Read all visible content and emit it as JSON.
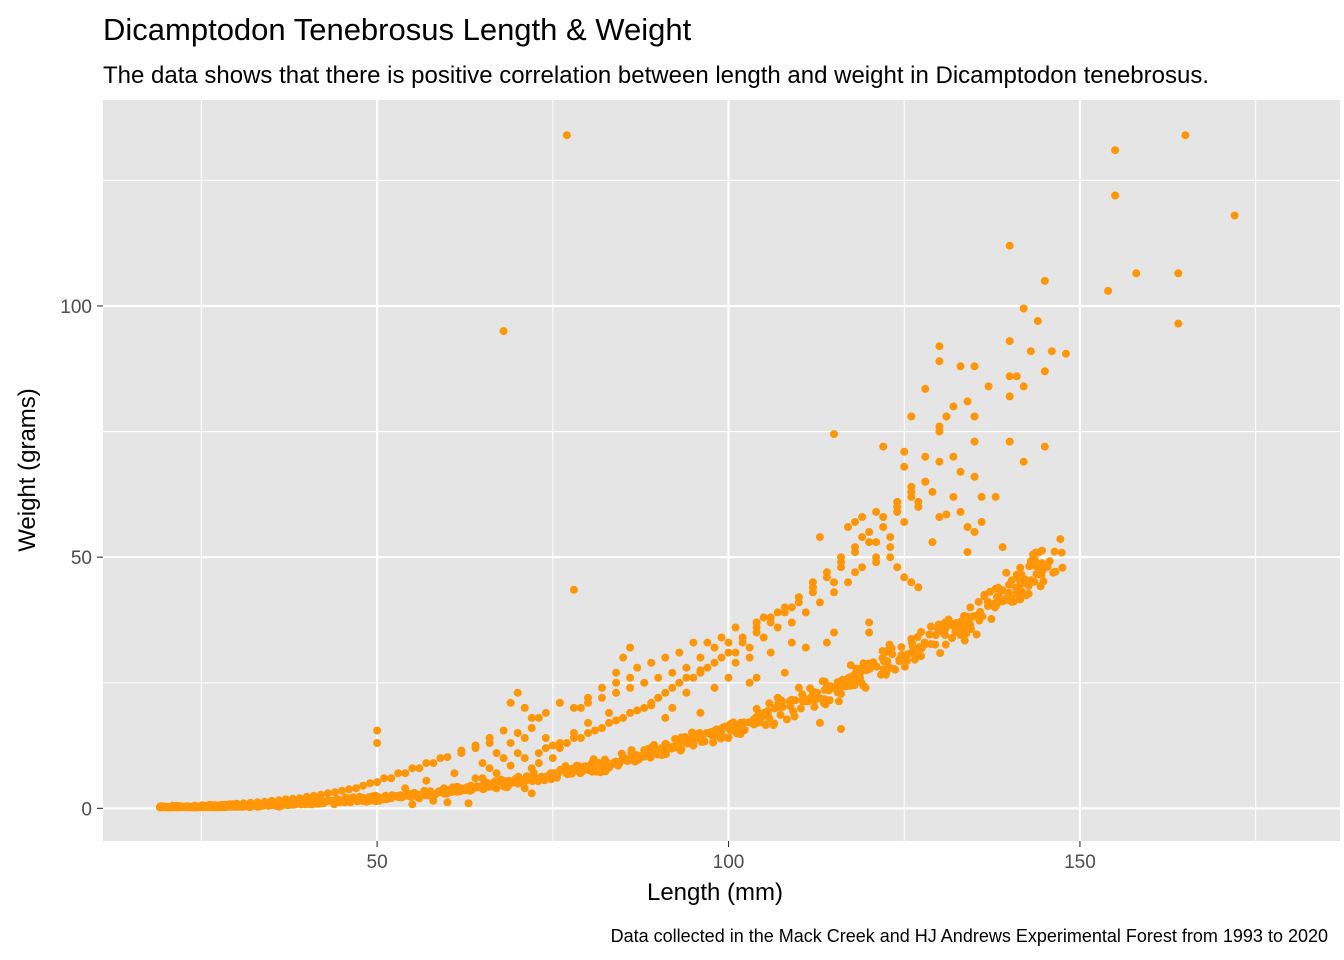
{
  "chart_data": {
    "type": "scatter",
    "title": "Dicamptodon Tenebrosus Length & Weight",
    "subtitle": "The data shows that there is positive correlation between length and weight in Dicamptodon tenebrosus.",
    "xlabel": "Length (mm)",
    "ylabel": "Weight (grams)",
    "caption": "Data collected in the Mack Creek and HJ Andrews Experimental Forest from 1993 to 2020",
    "xlim": [
      11,
      187
    ],
    "ylim": [
      -6.5,
      141
    ],
    "x_ticks": [
      50,
      100,
      150
    ],
    "x_tick_labels": [
      "50",
      "100",
      "150"
    ],
    "y_ticks": [
      0,
      50,
      100
    ],
    "y_tick_labels": [
      "0",
      "50",
      "100"
    ],
    "grid": true,
    "point_color": "#FF9607",
    "panel_color": "#E5E5E5",
    "grid_color": "#FFFFFF",
    "trend": {
      "a": 1.65e-05,
      "b": 2.99,
      "x_min": 19,
      "x_max": 148
    },
    "points": [
      [
        77,
        134
      ],
      [
        68,
        95
      ],
      [
        78,
        43.5
      ],
      [
        113,
        17
      ],
      [
        116,
        15.8
      ],
      [
        115,
        74.5
      ],
      [
        155,
        131
      ],
      [
        155,
        122
      ],
      [
        165,
        134
      ],
      [
        172,
        118
      ],
      [
        158,
        106.5
      ],
      [
        164,
        106.5
      ],
      [
        164,
        96.5
      ],
      [
        154,
        103
      ],
      [
        140,
        112
      ],
      [
        145,
        105
      ],
      [
        142,
        99.5
      ],
      [
        144,
        97
      ],
      [
        140,
        93
      ],
      [
        143,
        91
      ],
      [
        146,
        91
      ],
      [
        148,
        90.5
      ],
      [
        130,
        92
      ],
      [
        145,
        87
      ],
      [
        140,
        86
      ],
      [
        133,
        88
      ],
      [
        135,
        88
      ],
      [
        130,
        89
      ],
      [
        137,
        84
      ],
      [
        128,
        83.5
      ],
      [
        141,
        86
      ],
      [
        140,
        82
      ],
      [
        142,
        84
      ],
      [
        132,
        80
      ],
      [
        131,
        78
      ],
      [
        134,
        81
      ],
      [
        135,
        78
      ],
      [
        126,
        78
      ],
      [
        130,
        76
      ],
      [
        130,
        75
      ],
      [
        140,
        73
      ],
      [
        145,
        72
      ],
      [
        142,
        69
      ],
      [
        135,
        73
      ],
      [
        122,
        72
      ],
      [
        125,
        71
      ],
      [
        128,
        70
      ],
      [
        130,
        69
      ],
      [
        132,
        70
      ],
      [
        125,
        68
      ],
      [
        128,
        65
      ],
      [
        133,
        67
      ],
      [
        135,
        66
      ],
      [
        126,
        64
      ],
      [
        132,
        62
      ],
      [
        136,
        62
      ],
      [
        138,
        62
      ],
      [
        124,
        61
      ],
      [
        127,
        60
      ],
      [
        130,
        58
      ],
      [
        131,
        58.5
      ],
      [
        133,
        59
      ],
      [
        129,
        53
      ],
      [
        134,
        56
      ],
      [
        136,
        57
      ],
      [
        135,
        55
      ],
      [
        139,
        52
      ],
      [
        134,
        51
      ],
      [
        121,
        59
      ],
      [
        119,
        58
      ],
      [
        118,
        57
      ],
      [
        117,
        56
      ],
      [
        113,
        54
      ],
      [
        119,
        54
      ],
      [
        121,
        53
      ],
      [
        123,
        52
      ],
      [
        123,
        50
      ],
      [
        121,
        49
      ],
      [
        124,
        48
      ],
      [
        125,
        46
      ],
      [
        126,
        45
      ],
      [
        127,
        44
      ],
      [
        116,
        48
      ],
      [
        118,
        47
      ],
      [
        115,
        45
      ],
      [
        112,
        44
      ],
      [
        110,
        42
      ],
      [
        109,
        40
      ],
      [
        107,
        39
      ],
      [
        105,
        38
      ],
      [
        104,
        37
      ],
      [
        120,
        37
      ],
      [
        120,
        35
      ],
      [
        115,
        35
      ],
      [
        114,
        33
      ],
      [
        111,
        32
      ],
      [
        109,
        33
      ],
      [
        106,
        31
      ],
      [
        103,
        30
      ],
      [
        101,
        29
      ],
      [
        108,
        27
      ],
      [
        104,
        26
      ],
      [
        103,
        25
      ],
      [
        110,
        24
      ],
      [
        107,
        22
      ],
      [
        101,
        36
      ],
      [
        99,
        34
      ],
      [
        97,
        33
      ],
      [
        95,
        33
      ],
      [
        93,
        31
      ],
      [
        91,
        30
      ],
      [
        89,
        29
      ],
      [
        87,
        28
      ],
      [
        96,
        27
      ],
      [
        100,
        26
      ],
      [
        98,
        24
      ],
      [
        94,
        23
      ],
      [
        90,
        22
      ],
      [
        89,
        21
      ],
      [
        92,
        20
      ],
      [
        96,
        19
      ],
      [
        91,
        18
      ],
      [
        86,
        32
      ],
      [
        85,
        30
      ],
      [
        84,
        27
      ],
      [
        86,
        26
      ],
      [
        84,
        25
      ],
      [
        82,
        24
      ],
      [
        80,
        22
      ],
      [
        79,
        20
      ],
      [
        83,
        19
      ],
      [
        80,
        17
      ],
      [
        78,
        15
      ],
      [
        76,
        12
      ],
      [
        75,
        10
      ],
      [
        73,
        9
      ],
      [
        72,
        8
      ],
      [
        75,
        7
      ],
      [
        71,
        4
      ],
      [
        72,
        3
      ],
      [
        70,
        23
      ],
      [
        69,
        21
      ],
      [
        71,
        20
      ],
      [
        73,
        18
      ],
      [
        72,
        16
      ],
      [
        70,
        15
      ],
      [
        74,
        14
      ],
      [
        66,
        13
      ],
      [
        64,
        12
      ],
      [
        62,
        11
      ],
      [
        59,
        10
      ],
      [
        57,
        9
      ],
      [
        55,
        8
      ],
      [
        53,
        7
      ],
      [
        51,
        6
      ],
      [
        49,
        5
      ],
      [
        47,
        4
      ],
      [
        45,
        3.5
      ],
      [
        43,
        3
      ],
      [
        41,
        2.5
      ],
      [
        39,
        2
      ],
      [
        37,
        1.8
      ],
      [
        35,
        1.5
      ],
      [
        33,
        1.2
      ],
      [
        31,
        1
      ],
      [
        29,
        0.8
      ],
      [
        27,
        0.6
      ],
      [
        25,
        0.5
      ],
      [
        23,
        0.4
      ],
      [
        21,
        0.3
      ],
      [
        20,
        0.3
      ],
      [
        22,
        0.4
      ],
      [
        24,
        0.5
      ],
      [
        26,
        0.6
      ],
      [
        28,
        0.7
      ],
      [
        30,
        0.9
      ],
      [
        32,
        1.1
      ],
      [
        34,
        1.3
      ],
      [
        36,
        1.6
      ],
      [
        38,
        1.9
      ],
      [
        40,
        2.3
      ],
      [
        42,
        2.7
      ],
      [
        44,
        3.2
      ],
      [
        46,
        3.8
      ],
      [
        48,
        4.5
      ],
      [
        50,
        5.2
      ],
      [
        52,
        6
      ],
      [
        54,
        7
      ],
      [
        56,
        8
      ],
      [
        58,
        9
      ],
      [
        60,
        10.2
      ],
      [
        62,
        11.5
      ],
      [
        64,
        12.5
      ],
      [
        66,
        14
      ],
      [
        68,
        15.5
      ],
      [
        50,
        15.5
      ],
      [
        50,
        13
      ],
      [
        48,
        1.5
      ],
      [
        45,
        1.5
      ],
      [
        55,
        0.8
      ],
      [
        56,
        2
      ],
      [
        58,
        1.5
      ],
      [
        60,
        1.2
      ],
      [
        63,
        1
      ],
      [
        54,
        4
      ],
      [
        57,
        5.5
      ],
      [
        61,
        7
      ],
      [
        65,
        9
      ],
      [
        67,
        11
      ],
      [
        69,
        13
      ],
      [
        71,
        14
      ],
      [
        60,
        3
      ],
      [
        62,
        4
      ],
      [
        64,
        6
      ],
      [
        66,
        8
      ],
      [
        68,
        10
      ],
      [
        70,
        11
      ],
      [
        74,
        12
      ],
      [
        76,
        13
      ],
      [
        78,
        14
      ],
      [
        80,
        15
      ],
      [
        82,
        16
      ],
      [
        84,
        17.5
      ],
      [
        86,
        19
      ],
      [
        88,
        20
      ],
      [
        90,
        22
      ],
      [
        92,
        24
      ],
      [
        94,
        26
      ],
      [
        96,
        27.5
      ],
      [
        98,
        29
      ],
      [
        100,
        31
      ],
      [
        102,
        33
      ],
      [
        104,
        35
      ],
      [
        106,
        37
      ],
      [
        108,
        39
      ],
      [
        110,
        41
      ],
      [
        112,
        43
      ],
      [
        114,
        46
      ],
      [
        116,
        49
      ],
      [
        118,
        51
      ],
      [
        120,
        53
      ],
      [
        122,
        56
      ],
      [
        124,
        59
      ],
      [
        126,
        62
      ],
      [
        128,
        65
      ],
      [
        72,
        18
      ],
      [
        74,
        19
      ],
      [
        76,
        21
      ],
      [
        78,
        20
      ],
      [
        80,
        21
      ],
      [
        82,
        22
      ],
      [
        84,
        23
      ],
      [
        86,
        24
      ],
      [
        88,
        25
      ],
      [
        90,
        26
      ],
      [
        92,
        27
      ],
      [
        94,
        28
      ],
      [
        96,
        30
      ],
      [
        98,
        32
      ],
      [
        100,
        33
      ],
      [
        102,
        34
      ],
      [
        104,
        36
      ],
      [
        106,
        38
      ],
      [
        108,
        40
      ],
      [
        110,
        42
      ],
      [
        112,
        45
      ],
      [
        114,
        47
      ],
      [
        116,
        50
      ],
      [
        118,
        52
      ],
      [
        120,
        55
      ],
      [
        122,
        58
      ],
      [
        124,
        60
      ],
      [
        126,
        63
      ],
      [
        65,
        6
      ],
      [
        67,
        7
      ],
      [
        69,
        8.5
      ],
      [
        71,
        10
      ],
      [
        73,
        11
      ],
      [
        75,
        12.5
      ],
      [
        77,
        13
      ],
      [
        79,
        14
      ],
      [
        81,
        15.5
      ],
      [
        83,
        17
      ],
      [
        85,
        18
      ],
      [
        87,
        19.5
      ],
      [
        89,
        20.5
      ],
      [
        91,
        23
      ],
      [
        93,
        25
      ],
      [
        95,
        26
      ],
      [
        97,
        28
      ],
      [
        99,
        30
      ],
      [
        101,
        31
      ],
      [
        103,
        32
      ],
      [
        105,
        34
      ],
      [
        107,
        36
      ],
      [
        109,
        37
      ],
      [
        111,
        39
      ],
      [
        113,
        41
      ],
      [
        115,
        43
      ],
      [
        117,
        45
      ],
      [
        119,
        48
      ],
      [
        121,
        50
      ],
      [
        123,
        54
      ],
      [
        125,
        57
      ],
      [
        127,
        61
      ],
      [
        129,
        63
      ]
    ]
  }
}
